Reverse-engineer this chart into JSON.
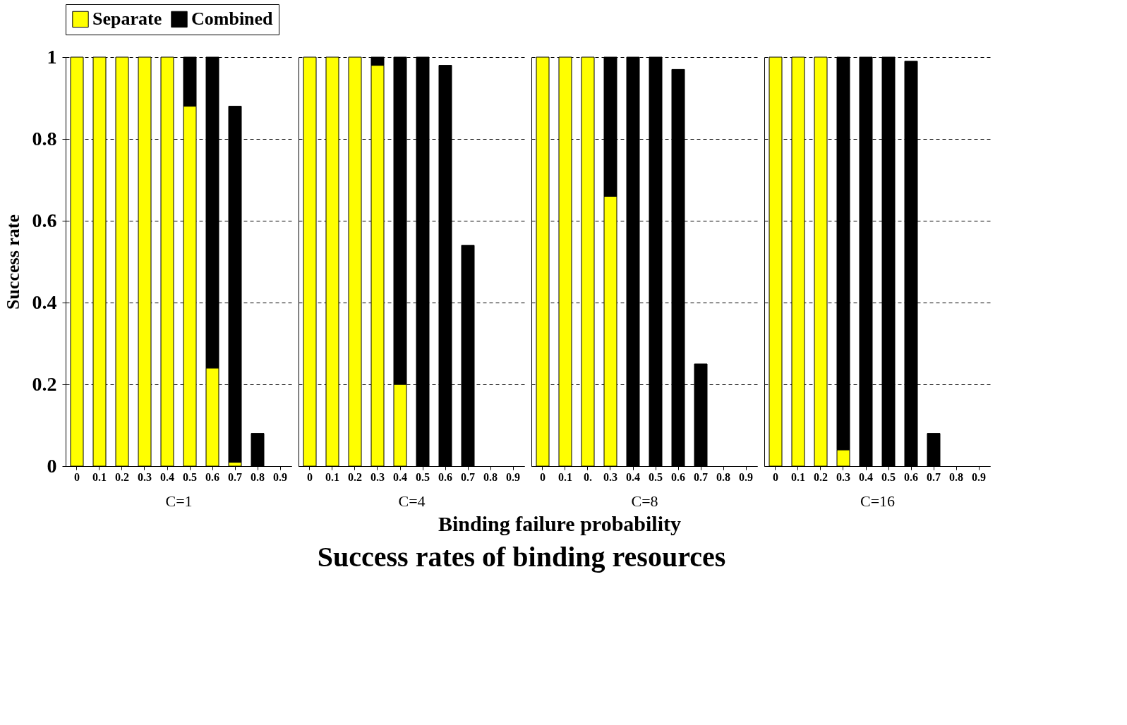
{
  "chart_data": [
    {
      "type": "bar",
      "xlabel": "C=1",
      "ylabel": "Success rate",
      "stacked": true,
      "legend": "top",
      "grid": "y",
      "ylim": [
        0,
        1
      ],
      "yticks": [
        0,
        0.2,
        0.4,
        0.6,
        0.8,
        1
      ],
      "categories": [
        "0",
        "0.1",
        "0.2",
        "0.3",
        "0.4",
        "0.5",
        "0.6",
        "0.7",
        "0.8",
        "0.9"
      ],
      "series": [
        {
          "name": "Separate",
          "color": "#ffff00",
          "values": [
            1,
            1,
            1,
            1,
            1,
            0.88,
            0.24,
            0.01,
            0,
            0
          ]
        },
        {
          "name": "Combined",
          "color": "#000000",
          "values": [
            0,
            0,
            0,
            0,
            0,
            0.12,
            0.76,
            0.87,
            0.08,
            0
          ]
        }
      ]
    },
    {
      "type": "bar",
      "xlabel": "C=4",
      "stacked": true,
      "grid": "y",
      "tick_labels": "x",
      "ylim": [
        0,
        1
      ],
      "yticks": [
        0,
        0.2,
        0.4,
        0.6,
        0.8,
        1
      ],
      "categories": [
        "0",
        "0.1",
        "0.2",
        "0.3",
        "0.4",
        "0.5",
        "0.6",
        "0.7",
        "0.8",
        "0.9"
      ],
      "series": [
        {
          "name": "Separate",
          "color": "#ffff00",
          "values": [
            1,
            1,
            1,
            0.98,
            0.2,
            0,
            0,
            0,
            0,
            0
          ]
        },
        {
          "name": "Combined",
          "color": "#000000",
          "values": [
            0,
            0,
            0,
            0.02,
            0.8,
            1,
            0.98,
            0.54,
            0,
            0
          ]
        }
      ]
    },
    {
      "type": "bar",
      "xlabel": "C=8",
      "stacked": true,
      "grid": "y",
      "tick_labels": "x",
      "ylim": [
        0,
        1
      ],
      "yticks": [
        0,
        0.2,
        0.4,
        0.6,
        0.8,
        1
      ],
      "categories": [
        "0",
        "0.1",
        "0.",
        "0.3",
        "0.4",
        "0.5",
        "0.6",
        "0.7",
        "0.8",
        "0.9"
      ],
      "series": [
        {
          "name": "Separate",
          "color": "#ffff00",
          "values": [
            1,
            1,
            1,
            0.66,
            0,
            0,
            0,
            0,
            0,
            0
          ]
        },
        {
          "name": "Combined",
          "color": "#000000",
          "values": [
            0,
            0,
            0,
            0.34,
            1,
            1,
            0.97,
            0.25,
            0,
            0
          ]
        }
      ]
    },
    {
      "type": "bar",
      "xlabel": "C=16",
      "stacked": true,
      "grid": "y",
      "tick_labels": "x",
      "ylim": [
        0,
        1
      ],
      "yticks": [
        0,
        0.2,
        0.4,
        0.6,
        0.8,
        1
      ],
      "categories": [
        "0",
        "0.1",
        "0.2",
        "0.3",
        "0.4",
        "0.5",
        "0.6",
        "0.7",
        "0.8",
        "0.9"
      ],
      "series": [
        {
          "name": "Separate",
          "color": "#ffff00",
          "values": [
            1,
            1,
            1,
            0.04,
            0,
            0,
            0,
            0,
            0,
            0
          ]
        },
        {
          "name": "Combined",
          "color": "#000000",
          "values": [
            0,
            0,
            0,
            0.96,
            1,
            1,
            0.99,
            0.08,
            0,
            0
          ]
        }
      ]
    },
    {
      "type": "other",
      "title": "Success rates of binding resources",
      "annotations": [
        "Binding failure probability"
      ]
    }
  ]
}
